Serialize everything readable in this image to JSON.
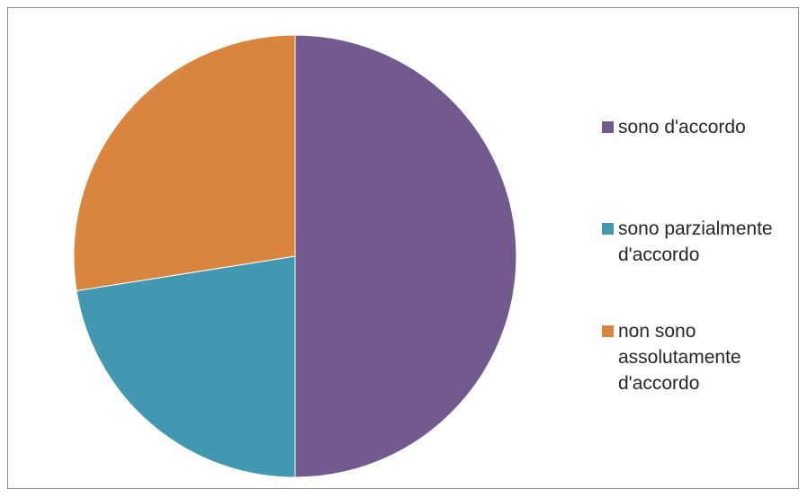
{
  "chart_data": {
    "type": "pie",
    "categories": [
      "sono d'accordo",
      "sono parzialmente d'accordo",
      "non sono assolutamente d'accordo"
    ],
    "values": [
      50,
      22.5,
      27.5
    ],
    "colors": [
      "#725a8e",
      "#4298b0",
      "#d9853e"
    ],
    "start_angle": "12 o'clock",
    "direction": "clockwise",
    "legend_position": "right"
  }
}
